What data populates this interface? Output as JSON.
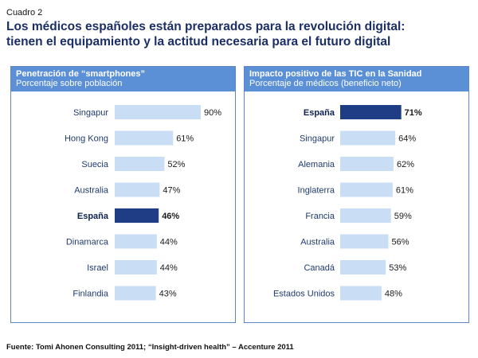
{
  "header": {
    "label": "Cuadro 2",
    "title_line1": "Los médicos españoles están preparados para la revolución digital:",
    "title_line2": "tienen el equipamiento y la actitud necesaria para el futuro digital"
  },
  "colors": {
    "highlight": "#1f3d85",
    "bar": "#c9ddf4",
    "header_bg": "#5b8fd6",
    "title": "#1b2f66"
  },
  "chart_data": [
    {
      "type": "bar",
      "orientation": "horizontal",
      "title": "Penetración de “smartphones”",
      "subtitle": "Porcentaje sobre población",
      "categories": [
        "Singapur",
        "Hong Kong",
        "Suecia",
        "Australia",
        "España",
        "Dinamarca",
        "Israel",
        "Finlandia"
      ],
      "values": [
        90,
        61,
        52,
        47,
        46,
        44,
        44,
        43
      ],
      "value_labels": [
        "90%",
        "61%",
        "52%",
        "47%",
        "46%",
        "44%",
        "44%",
        "43%"
      ],
      "highlight": "España",
      "xlim": [
        0,
        100
      ]
    },
    {
      "type": "bar",
      "orientation": "horizontal",
      "title": "Impacto positivo de las TIC en la Sanidad",
      "subtitle": "Porcentaje de médicos (beneficio neto)",
      "categories": [
        "España",
        "Singapur",
        "Alemania",
        "Inglaterra",
        "Francia",
        "Australia",
        "Canadá",
        "Estados Unidos"
      ],
      "values": [
        71,
        64,
        62,
        61,
        59,
        56,
        53,
        48
      ],
      "value_labels": [
        "71%",
        "64%",
        "62%",
        "61%",
        "59%",
        "56%",
        "53%",
        "48%"
      ],
      "highlight": "España",
      "xlim": [
        0,
        100
      ]
    }
  ],
  "footer": {
    "source": "Fuente: Tomi Ahonen Consulting 2011; “Insight-driven health” – Accenture 2011"
  }
}
